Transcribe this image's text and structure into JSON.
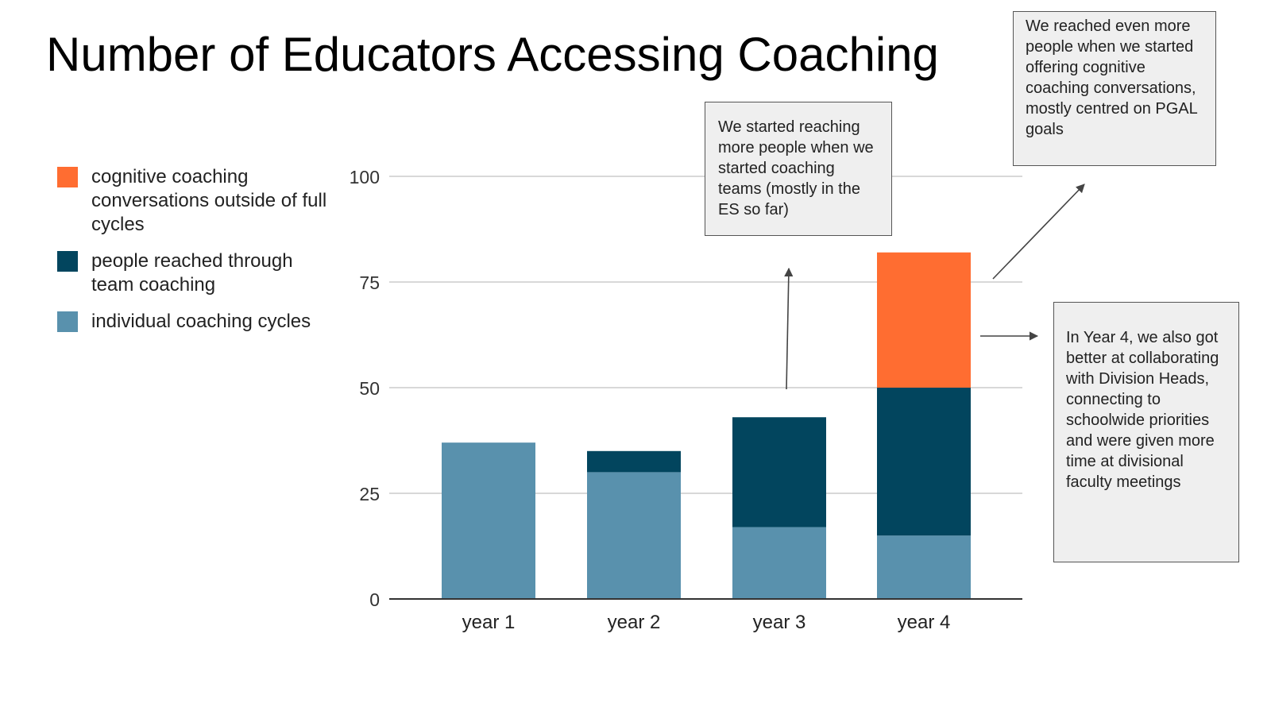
{
  "title": "Number of Educators Accessing Coaching",
  "legend": [
    {
      "label": "cognitive coaching conversations outside of full cycles",
      "color": "#ff6d31"
    },
    {
      "label": "people reached through team coaching",
      "color": "#02455e"
    },
    {
      "label": "individual coaching cycles",
      "color": "#5991ad"
    }
  ],
  "chart_data": {
    "type": "bar",
    "stacked": true,
    "categories": [
      "year 1",
      "year 2",
      "year 3",
      "year 4"
    ],
    "series": [
      {
        "name": "individual coaching cycles",
        "color": "#5991ad",
        "values": [
          37,
          30,
          17,
          15
        ]
      },
      {
        "name": "people reached through team coaching",
        "color": "#02455e",
        "values": [
          0,
          5,
          26,
          35
        ]
      },
      {
        "name": "cognitive coaching conversations outside of full cycles",
        "color": "#ff6d31",
        "values": [
          0,
          0,
          0,
          32
        ]
      }
    ],
    "ylim": [
      0,
      100
    ],
    "yticks": [
      "0",
      "25",
      "50",
      "75",
      "100"
    ],
    "grid": true,
    "legend_position": "left"
  },
  "annotations": [
    "We started reaching more people when we started coaching teams (mostly in the ES so far)",
    "We reached even more people when we started offering cognitive coaching conversations, mostly centred on PGAL goals",
    "In Year 4, we also got better at collaborating with Division Heads, connecting to schoolwide priorities and were given more time at divisional faculty meetings"
  ]
}
